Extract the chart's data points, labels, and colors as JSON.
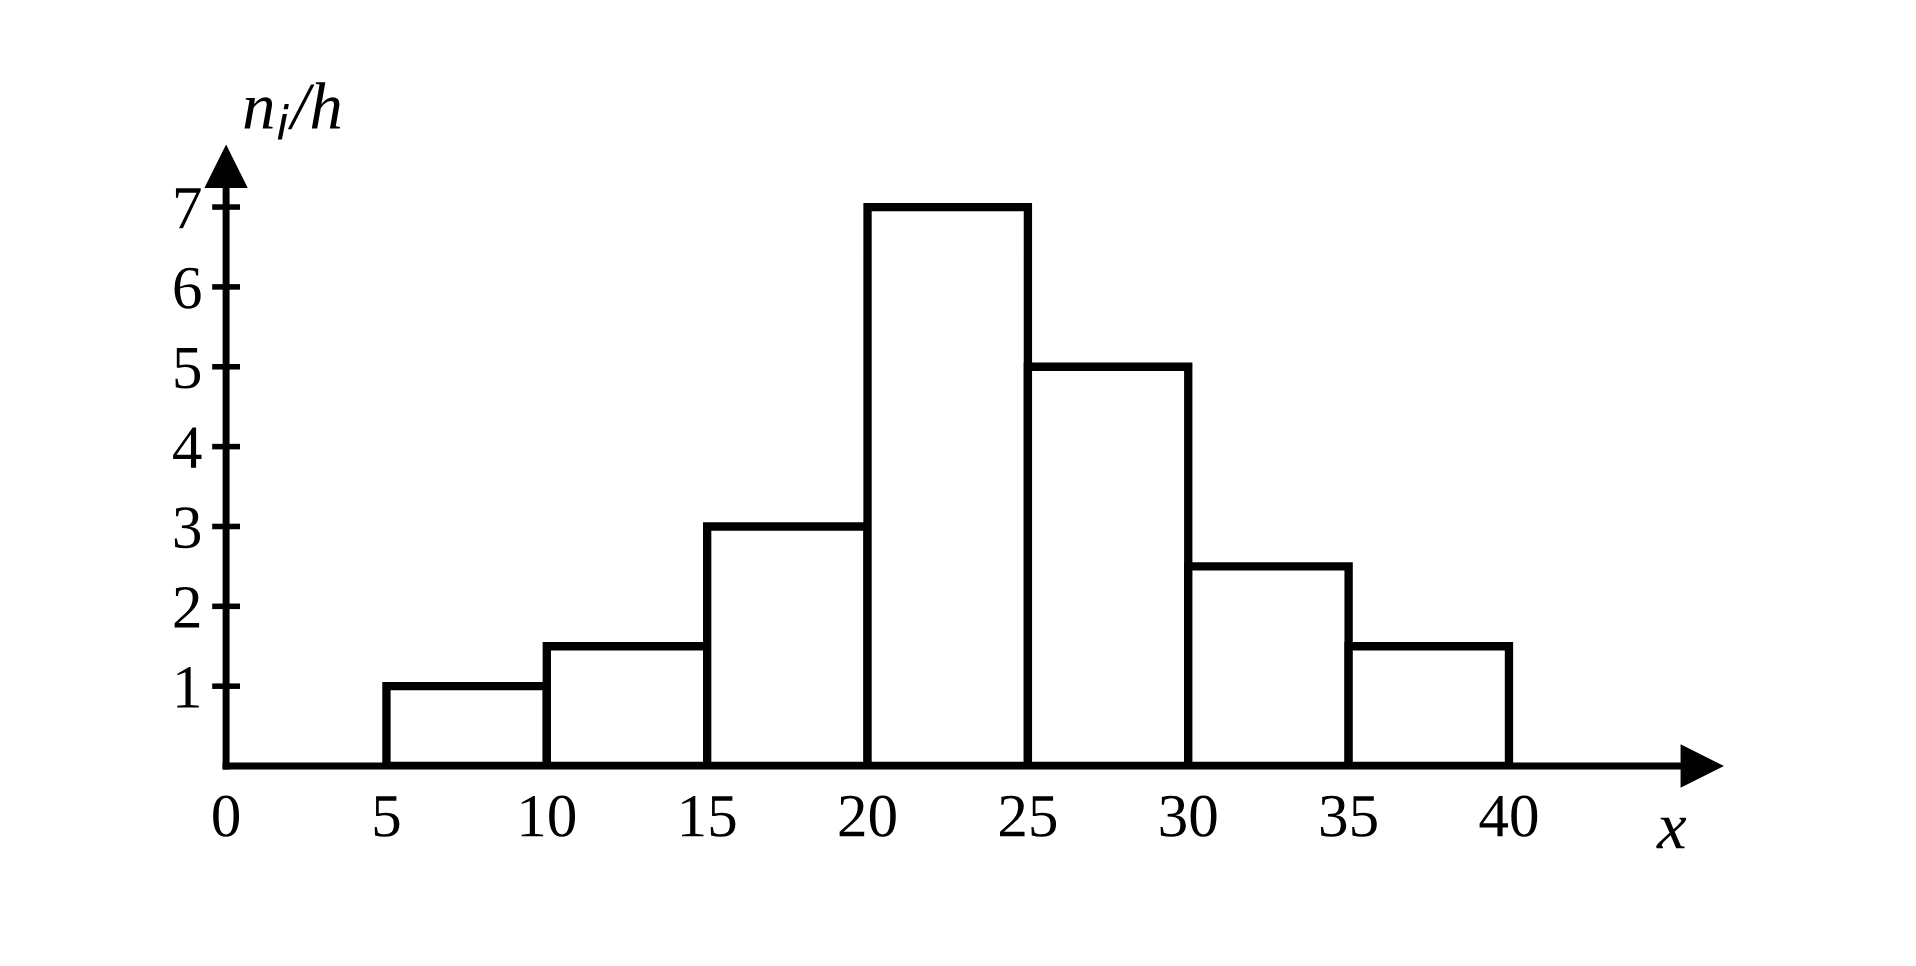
{
  "chart_data": {
    "type": "histogram",
    "xlabel": "x",
    "ylabel": "n$_{i}$/h",
    "bins": [
      5,
      10,
      15,
      20,
      25,
      30,
      35,
      40
    ],
    "values": [
      1,
      1.5,
      3,
      7,
      5,
      2.5,
      1.5
    ],
    "color": "#ffffff",
    "xlim": [
      0,
      46
    ],
    "ylim": [
      0,
      7.5
    ],
    "xticks": [
      0,
      5,
      10,
      15,
      20,
      25,
      30,
      35,
      40
    ],
    "yticks": [
      1,
      2,
      3,
      4,
      5,
      6,
      7
    ],
    "grid": false,
    "legend": false
  }
}
